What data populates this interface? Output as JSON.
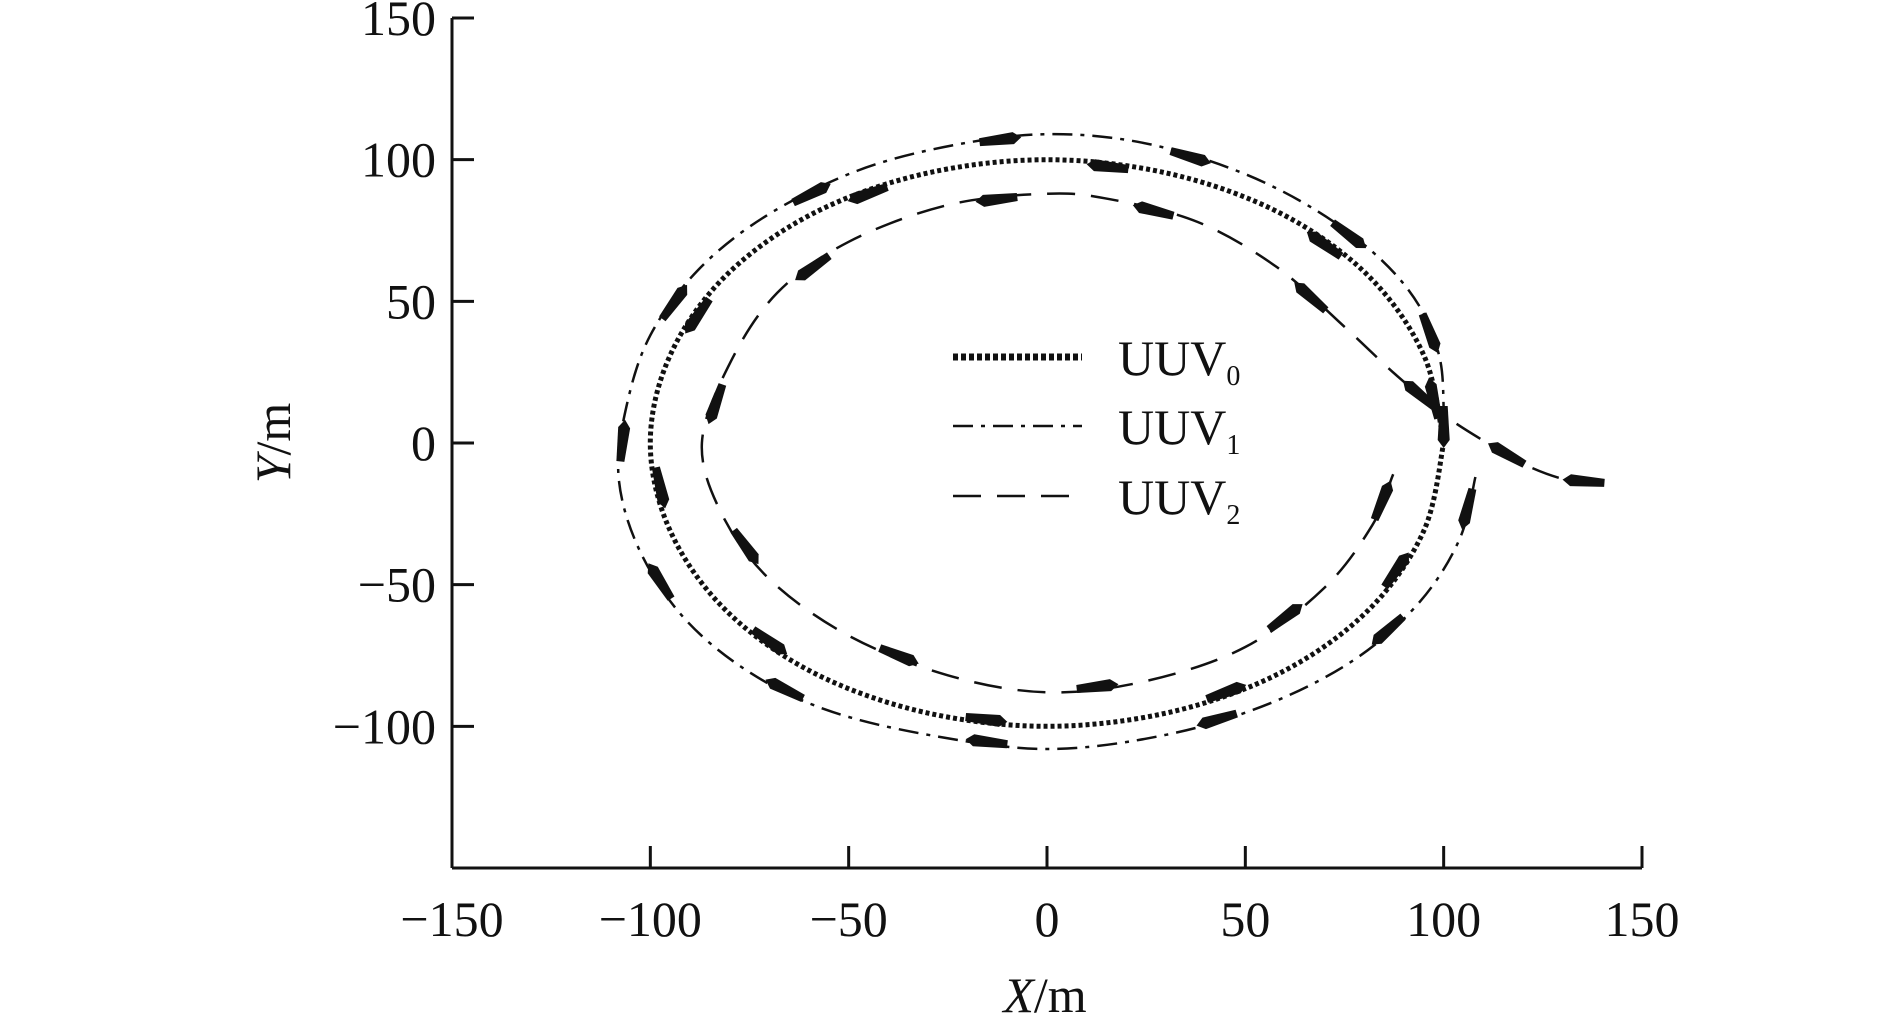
{
  "chart_data": {
    "type": "line",
    "xlabel": {
      "var": "X",
      "unit": "/m"
    },
    "ylabel": {
      "var": "Y",
      "unit": "/m"
    },
    "xlim": [
      -150,
      150
    ],
    "ylim": [
      -150,
      150
    ],
    "xticks": [
      -150,
      -100,
      -50,
      0,
      50,
      100,
      150
    ],
    "xtick_labels": [
      "−150",
      "−100",
      "−50",
      "0",
      "50",
      "100",
      "150"
    ],
    "yticks": [
      -100,
      -50,
      0,
      50,
      100,
      150
    ],
    "ytick_labels": [
      "−100",
      "−50",
      "0",
      "50",
      "100",
      "150"
    ],
    "grid": false,
    "legend_position": "center",
    "series": [
      {
        "name": "UUV0",
        "label_main": "UUV",
        "label_sub": "0",
        "style": "dotted",
        "color": "#111111",
        "points": [
          [
            100,
            0
          ],
          [
            95,
            31
          ],
          [
            81,
            59
          ],
          [
            59,
            81
          ],
          [
            31,
            95
          ],
          [
            0,
            100
          ],
          [
            -31,
            95
          ],
          [
            -59,
            81
          ],
          [
            -81,
            59
          ],
          [
            -95,
            31
          ],
          [
            -100,
            0
          ],
          [
            -95,
            -31
          ],
          [
            -81,
            -59
          ],
          [
            -59,
            -81
          ],
          [
            -31,
            -95
          ],
          [
            0,
            -100
          ],
          [
            31,
            -95
          ],
          [
            59,
            -81
          ],
          [
            81,
            -59
          ],
          [
            95,
            -31
          ],
          [
            100,
            0
          ]
        ]
      },
      {
        "name": "UUV1",
        "label_main": "UUV",
        "label_sub": "1",
        "style": "dashdot",
        "color": "#111111",
        "points": [
          [
            108,
            -12
          ],
          [
            104,
            -34
          ],
          [
            94,
            -56
          ],
          [
            78,
            -76
          ],
          [
            56,
            -92
          ],
          [
            30,
            -103
          ],
          [
            0,
            -108
          ],
          [
            -30,
            -103
          ],
          [
            -56,
            -94
          ],
          [
            -76,
            -80
          ],
          [
            -92,
            -61
          ],
          [
            -103,
            -37
          ],
          [
            -108,
            -12
          ],
          [
            -106,
            13
          ],
          [
            -100,
            38
          ],
          [
            -88,
            61
          ],
          [
            -71,
            80
          ],
          [
            -48,
            96
          ],
          [
            -24,
            105
          ],
          [
            0,
            109
          ],
          [
            24,
            106
          ],
          [
            48,
            96
          ],
          [
            68,
            82
          ],
          [
            84,
            65
          ],
          [
            94,
            48
          ],
          [
            99,
            30
          ],
          [
            100,
            12
          ],
          [
            100,
            0
          ]
        ]
      },
      {
        "name": "UUV2",
        "label_main": "UUV",
        "label_sub": "2",
        "style": "dashed",
        "color": "#111111",
        "points": [
          [
            140,
            -14
          ],
          [
            131,
            -13
          ],
          [
            121,
            -8
          ],
          [
            111,
            0
          ],
          [
            100,
            10
          ],
          [
            88,
            24
          ],
          [
            75,
            41
          ],
          [
            58,
            62
          ],
          [
            38,
            78
          ],
          [
            16,
            86
          ],
          [
            0,
            88
          ],
          [
            -25,
            84
          ],
          [
            -50,
            71
          ],
          [
            -68,
            53
          ],
          [
            -80,
            28
          ],
          [
            -87,
            0
          ],
          [
            -82,
            -25
          ],
          [
            -70,
            -48
          ],
          [
            -50,
            -68
          ],
          [
            -25,
            -82
          ],
          [
            0,
            -88
          ],
          [
            25,
            -84
          ],
          [
            50,
            -72
          ],
          [
            70,
            -51
          ],
          [
            82,
            -29
          ],
          [
            87,
            -12
          ],
          [
            88,
            -8
          ]
        ]
      }
    ]
  }
}
